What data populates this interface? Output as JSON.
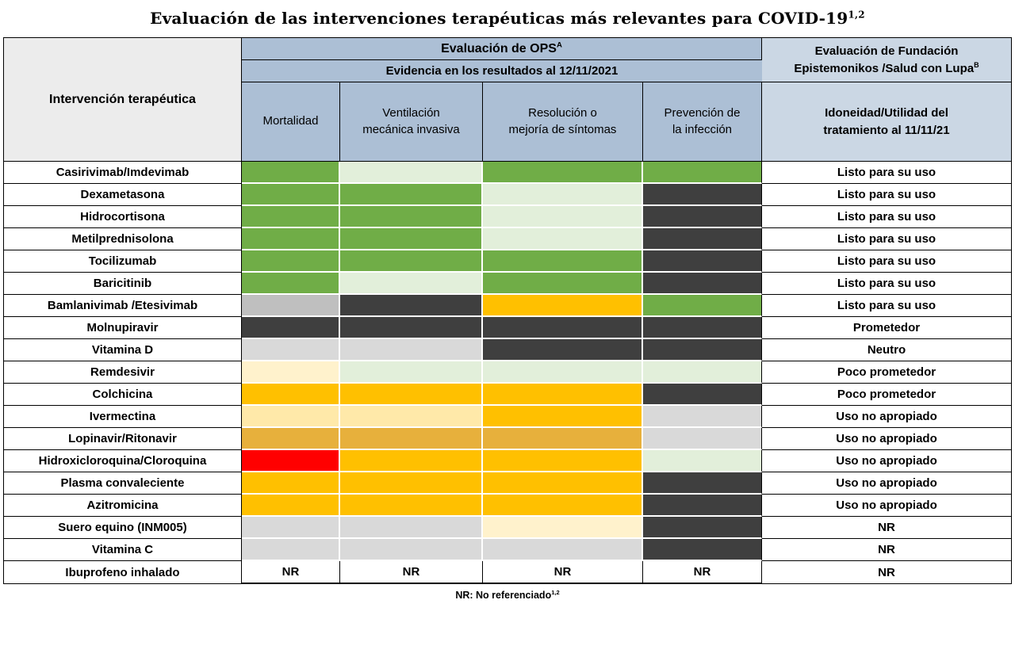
{
  "title": {
    "text": "Evaluación de las intervenciones terapéuticas más relevantes para COVID-19",
    "superscript": "1,2"
  },
  "header": {
    "intervention": "Intervención terapéutica",
    "ops": "Evaluación de OPS",
    "ops_superscript": "A",
    "evidence": "Evidencia en los resultados al 12/11/2021",
    "epistemonikos": "Evaluación de Fundación\nEpistemonikos /Salud con Lupa",
    "epistemonikos_superscript": "B",
    "outcome_columns": [
      "Mortalidad",
      "Ventilación\nmecánica invasiva",
      "Resolución o\nmejoría de síntomas",
      "Prevención de\nla infección"
    ],
    "suitability": "Idoneidad/Utilidad del\ntratamiento al 11/11/21"
  },
  "footnote": {
    "text": "NR: No referenciado",
    "superscript": "1,2"
  },
  "colors": {
    "background": "#ffffff",
    "header_blue": "#acbfd5",
    "header_blue_light": "#cbd7e4",
    "corner_gray": "#ececec",
    "table_border": "#000000"
  },
  "chart_data": {
    "type": "table",
    "title": "Evaluación de las intervenciones terapéuticas más relevantes para COVID-19",
    "columns": [
      "Intervención terapéutica",
      "Mortalidad",
      "Ventilación mecánica invasiva",
      "Resolución o mejoría de síntomas",
      "Prevención de la infección",
      "Idoneidad/Utilidad del tratamiento al 11/11/21"
    ],
    "nr_label": "NR",
    "color_legend": {
      "green": "#70AD47",
      "light_green": "#E2EFDA",
      "dark_gray": "#3F3F3F",
      "gray": "#BFBFBF",
      "light_gray": "#D9D9D9",
      "orange": "#FFC000",
      "amber": "#E7B03C",
      "cream": "#FFF2CC",
      "butter": "#FFE9A9",
      "red": "#FF0000"
    },
    "rows": [
      {
        "intervention": "Casirivimab/Imdevimab",
        "ratings": [
          "green",
          "light_green",
          "green",
          "green"
        ],
        "verdict": "Listo para su uso"
      },
      {
        "intervention": "Dexametasona",
        "ratings": [
          "green",
          "green",
          "light_green",
          "dark_gray"
        ],
        "verdict": "Listo para su uso"
      },
      {
        "intervention": "Hidrocortisona",
        "ratings": [
          "green",
          "green",
          "light_green",
          "dark_gray"
        ],
        "verdict": "Listo para su uso"
      },
      {
        "intervention": "Metilprednisolona",
        "ratings": [
          "green",
          "green",
          "light_green",
          "dark_gray"
        ],
        "verdict": "Listo para su uso"
      },
      {
        "intervention": "Tocilizumab",
        "ratings": [
          "green",
          "green",
          "green",
          "dark_gray"
        ],
        "verdict": "Listo para su uso"
      },
      {
        "intervention": "Baricitinib",
        "ratings": [
          "green",
          "light_green",
          "green",
          "dark_gray"
        ],
        "verdict": "Listo para su uso"
      },
      {
        "intervention": "Bamlanivimab /Etesivimab",
        "ratings": [
          "gray",
          "dark_gray",
          "orange",
          "green"
        ],
        "verdict": "Listo para su uso"
      },
      {
        "intervention": "Molnupiravir",
        "ratings": [
          "dark_gray",
          "dark_gray",
          "dark_gray",
          "dark_gray"
        ],
        "verdict": "Prometedor"
      },
      {
        "intervention": "Vitamina D",
        "ratings": [
          "light_gray",
          "light_gray",
          "dark_gray",
          "dark_gray"
        ],
        "verdict": "Neutro"
      },
      {
        "intervention": "Remdesivir",
        "ratings": [
          "cream",
          "light_green",
          "light_green",
          "light_green"
        ],
        "verdict": "Poco prometedor"
      },
      {
        "intervention": "Colchicina",
        "ratings": [
          "orange",
          "orange",
          "orange",
          "dark_gray"
        ],
        "verdict": "Poco prometedor"
      },
      {
        "intervention": "Ivermectina",
        "ratings": [
          "butter",
          "butter",
          "orange",
          "light_gray"
        ],
        "verdict": "Uso no apropiado"
      },
      {
        "intervention": "Lopinavir/Ritonavir",
        "ratings": [
          "amber",
          "amber",
          "amber",
          "light_gray"
        ],
        "verdict": "Uso no apropiado"
      },
      {
        "intervention": "Hidroxicloroquina/Cloroquina",
        "ratings": [
          "red",
          "orange",
          "orange",
          "light_green"
        ],
        "verdict": "Uso no apropiado"
      },
      {
        "intervention": "Plasma convaleciente",
        "ratings": [
          "orange",
          "orange",
          "orange",
          "dark_gray"
        ],
        "verdict": "Uso no apropiado"
      },
      {
        "intervention": "Azitromicina",
        "ratings": [
          "orange",
          "orange",
          "orange",
          "dark_gray"
        ],
        "verdict": "Uso no apropiado"
      },
      {
        "intervention": "Suero equino (INM005)",
        "ratings": [
          "light_gray",
          "light_gray",
          "cream",
          "dark_gray"
        ],
        "verdict": "NR"
      },
      {
        "intervention": "Vitamina C",
        "ratings": [
          "light_gray",
          "light_gray",
          "light_gray",
          "dark_gray"
        ],
        "verdict": "NR"
      },
      {
        "intervention": "Ibuprofeno inhalado",
        "ratings": [
          "nr",
          "nr",
          "nr",
          "nr"
        ],
        "verdict": "NR"
      }
    ]
  }
}
